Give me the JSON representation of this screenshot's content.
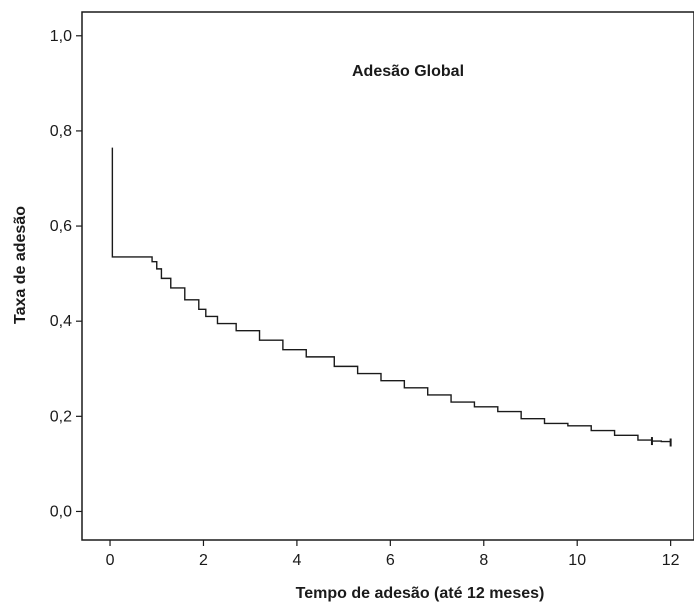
{
  "chart_data": {
    "type": "line",
    "title": "Adesão Global",
    "xlabel": "Tempo  de adesão (até 12 meses)",
    "ylabel": "Taxa de adesão",
    "xlim": [
      -0.6,
      12.5
    ],
    "ylim": [
      -0.06,
      1.05
    ],
    "x_ticks": [
      0,
      2,
      4,
      6,
      8,
      10,
      12
    ],
    "x_tick_labels": [
      "0",
      "2",
      "4",
      "6",
      "8",
      "10",
      "12"
    ],
    "y_ticks": [
      0.0,
      0.2,
      0.4,
      0.6,
      0.8,
      1.0
    ],
    "y_tick_labels": [
      "0,0",
      "0,2",
      "0,4",
      "0,6",
      "0,8",
      "1,0"
    ],
    "grid": false,
    "step": true,
    "series": [
      {
        "x": [
          0.05,
          0.05,
          0.75,
          0.9,
          1.0,
          1.1,
          1.3,
          1.6,
          1.9,
          2.05,
          2.3,
          2.7,
          3.2,
          3.7,
          4.2,
          4.8,
          5.3,
          5.8,
          6.3,
          6.8,
          7.3,
          7.8,
          8.3,
          8.8,
          9.3,
          9.8,
          10.3,
          10.8,
          11.3,
          11.6,
          11.8,
          12.0
        ],
        "y": [
          0.765,
          0.535,
          0.535,
          0.525,
          0.51,
          0.49,
          0.47,
          0.445,
          0.425,
          0.41,
          0.395,
          0.38,
          0.36,
          0.34,
          0.325,
          0.305,
          0.29,
          0.275,
          0.26,
          0.245,
          0.23,
          0.22,
          0.21,
          0.195,
          0.185,
          0.18,
          0.17,
          0.16,
          0.15,
          0.148,
          0.147,
          0.145
        ]
      }
    ],
    "censor_marks": [
      {
        "x": 11.6,
        "y": 0.148
      },
      {
        "x": 12.0,
        "y": 0.145
      }
    ]
  }
}
